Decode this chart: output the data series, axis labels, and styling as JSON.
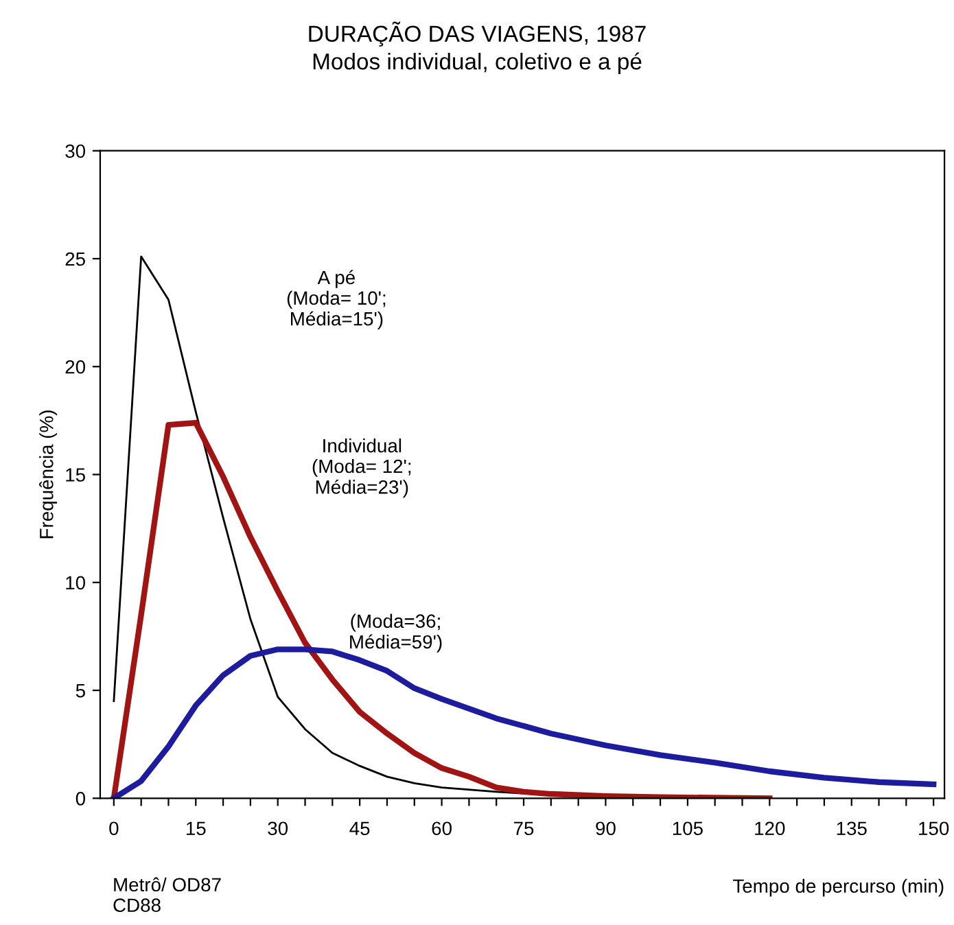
{
  "chart_data": {
    "type": "line",
    "title": "DURAÇÃO DAS VIAGENS, 1987",
    "subtitle": "Modos individual, coletivo e a pé",
    "xlabel": "Tempo de percurso (min)",
    "ylabel": "Frequência (%)",
    "series": [
      {
        "color": "#000000",
        "x": [
          0,
          5,
          10,
          15,
          20,
          25,
          30,
          35,
          40,
          45,
          50,
          55,
          60,
          70,
          80,
          90,
          100
        ],
        "values": [
          4.5,
          25.1,
          23.1,
          17.9,
          13.0,
          8.3,
          4.7,
          3.2,
          2.1,
          1.5,
          1.0,
          0.7,
          0.5,
          0.3,
          0.15,
          0.05,
          0
        ]
      },
      {
        "color": "#a01414",
        "x": [
          0,
          5,
          10,
          15,
          20,
          25,
          30,
          35,
          40,
          45,
          50,
          55,
          60,
          65,
          70,
          75,
          80,
          90,
          100,
          120
        ],
        "values": [
          0,
          8.5,
          17.3,
          17.4,
          14.9,
          12.1,
          9.6,
          7.2,
          5.5,
          4.0,
          3.0,
          2.1,
          1.4,
          1.0,
          0.5,
          0.3,
          0.2,
          0.1,
          0.05,
          0
        ]
      },
      {
        "color": "#1c1c9c",
        "x": [
          0,
          5,
          10,
          15,
          20,
          25,
          30,
          35,
          40,
          45,
          50,
          55,
          60,
          70,
          80,
          90,
          100,
          110,
          120,
          130,
          140,
          150
        ],
        "values": [
          0,
          0.8,
          2.4,
          4.3,
          5.7,
          6.6,
          6.9,
          6.9,
          6.8,
          6.4,
          5.9,
          5.1,
          4.6,
          3.7,
          3.0,
          2.45,
          2.0,
          1.65,
          1.25,
          0.95,
          0.75,
          0.65
        ]
      }
    ],
    "xlim": [
      -2.5,
      152
    ],
    "ylim": [
      0,
      30
    ],
    "xticks": [
      0,
      {
        "value": 5,
        "label": null
      },
      {
        "value": 10,
        "label": null
      },
      15,
      {
        "value": 20,
        "label": null
      },
      {
        "value": 25,
        "label": null
      },
      30,
      {
        "value": 35,
        "label": null
      },
      {
        "value": 40,
        "label": null
      },
      45,
      {
        "value": 50,
        "label": null
      },
      {
        "value": 55,
        "label": null
      },
      60,
      {
        "value": 65,
        "label": null
      },
      {
        "value": 70,
        "label": null
      },
      75,
      {
        "value": 80,
        "label": null
      },
      {
        "value": 85,
        "label": null
      },
      90,
      {
        "value": 95,
        "label": null
      },
      {
        "value": 100,
        "label": null
      },
      105,
      {
        "value": 110,
        "label": null
      },
      {
        "value": 115,
        "label": null
      },
      120,
      {
        "value": 125,
        "label": null
      },
      {
        "value": 130,
        "label": null
      },
      135,
      {
        "value": 140,
        "label": null
      },
      {
        "value": 145,
        "label": null
      },
      150
    ],
    "yticks": [
      0,
      5,
      10,
      15,
      20,
      25,
      30
    ],
    "annotations": [
      "A pé\n(Moda= 10';\nMédia=15')",
      "Individual\n(Moda= 12';\nMédia=23')",
      "(Moda=36;\nMédia=59')",
      "Metrô/ OD87\nCD88"
    ],
    "grid": false,
    "marker": "none",
    "line_style": "solid"
  }
}
